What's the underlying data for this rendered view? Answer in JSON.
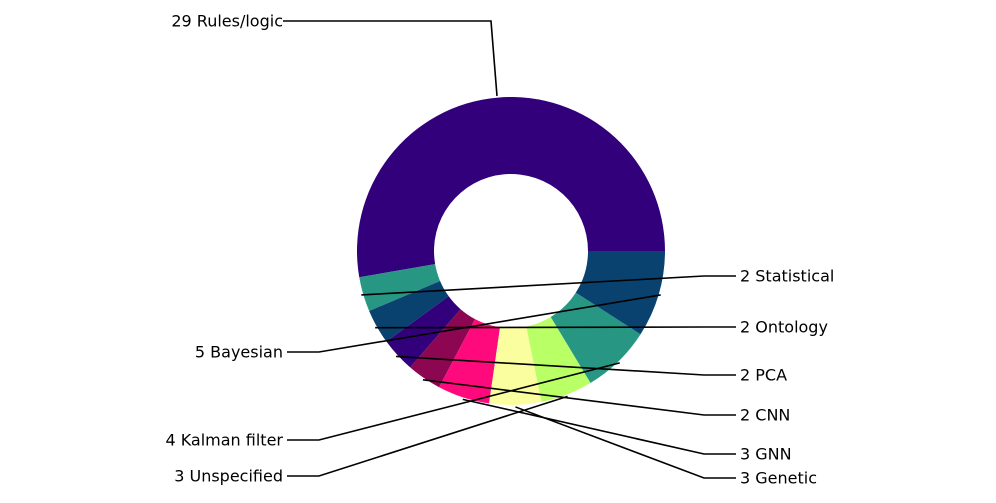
{
  "chart_data": {
    "type": "pie",
    "style": "donut",
    "title": "",
    "slices": [
      {
        "label": "29 Rules/logic",
        "value": 29,
        "color": "#31007a"
      },
      {
        "label": "2 Statistical",
        "value": 2,
        "color": "#279783"
      },
      {
        "label": "2 Ontology",
        "value": 2,
        "color": "#0a426f"
      },
      {
        "label": "2 PCA",
        "value": 2,
        "color": "#31007a"
      },
      {
        "label": "2 CNN",
        "value": 2,
        "color": "#8c0652"
      },
      {
        "label": "3 GNN",
        "value": 3,
        "color": "#ff0a7d"
      },
      {
        "label": "3 Genetic",
        "value": 3,
        "color": "#fafe9e"
      },
      {
        "label": "3 Unspecified",
        "value": 3,
        "color": "#b9ff66"
      },
      {
        "label": "4 Kalman filter",
        "value": 4,
        "color": "#279783"
      },
      {
        "label": "5 Bayesian",
        "value": 5,
        "color": "#0a426f"
      }
    ]
  }
}
